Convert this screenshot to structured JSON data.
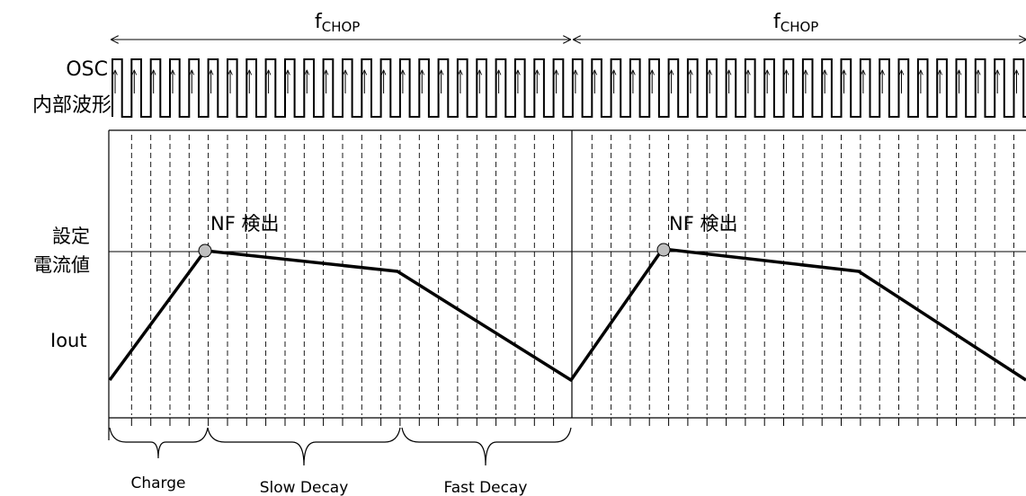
{
  "labels": {
    "f_chop_main": "f",
    "f_chop_sub": "CHOP",
    "osc_line1": "OSC",
    "osc_line2": "内部波形",
    "set_current_line1": "設定",
    "set_current_line2": "電流値",
    "iout": "Iout",
    "nf_detect": "NF 検出",
    "phase_charge": "Charge",
    "phase_slow": "Slow Decay",
    "phase_fast": "Fast Decay"
  },
  "colors": {
    "line": "#000000",
    "marker_fill": "#bfbfbf"
  },
  "periods": [
    {
      "pulses_count": 24,
      "marker_at_pulse": 5,
      "phases": [
        {
          "name": "Charge",
          "pulse_span": 5
        },
        {
          "name": "Slow Decay",
          "pulse_span": 11
        },
        {
          "name": "Fast Decay",
          "pulse_span": 9
        }
      ]
    },
    {
      "pulses_count": 24,
      "marker_at_pulse": 5
    }
  ]
}
